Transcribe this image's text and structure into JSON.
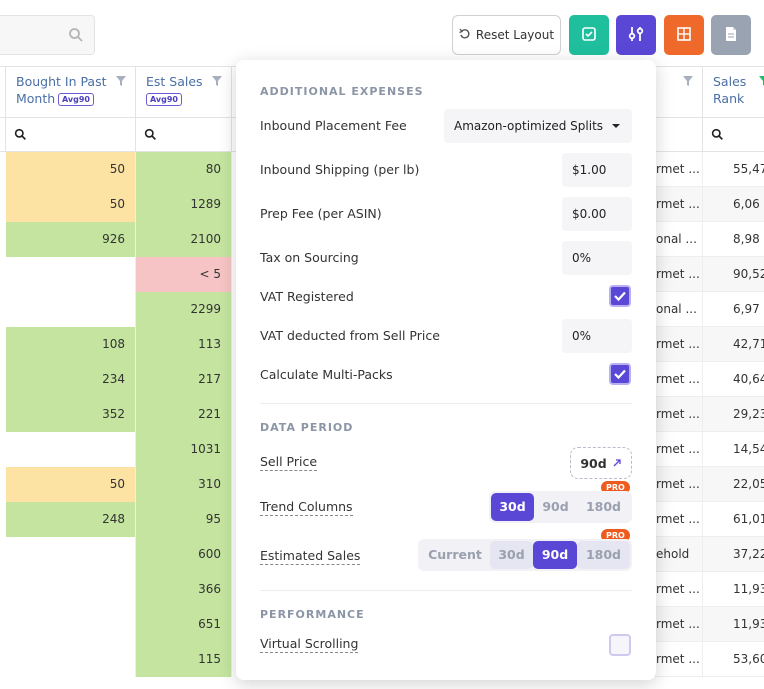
{
  "toolbar": {
    "reset_label": "Reset Layout"
  },
  "colors": {
    "accent": "#5b47d6",
    "teal": "#1fbf9d",
    "orange": "#ef6a2a",
    "gray": "#9aa3b2",
    "green_cell": "#c4e4a0",
    "orange_cell": "#fde3a3",
    "red_cell": "#f6c4c4"
  },
  "columns": {
    "bought": {
      "title": "Bought In Past Month",
      "badge": "Avg90"
    },
    "est_sales": {
      "title": "Est Sales",
      "badge": "Avg90"
    },
    "sales_rank": {
      "title": "Sales Rank"
    }
  },
  "rows": [
    {
      "bought": "50",
      "est": "80",
      "cat": "rmet ...",
      "rank": "55,47"
    },
    {
      "bought": "50",
      "est": "1289",
      "cat": "rmet ...",
      "rank": "6,06"
    },
    {
      "bought": "926",
      "est": "2100",
      "cat": "onal ...",
      "rank": "8,98"
    },
    {
      "bought": "",
      "est": "< 5",
      "cat": "rmet ...",
      "rank": "90,52"
    },
    {
      "bought": "",
      "est": "2299",
      "cat": "onal ...",
      "rank": "6,97"
    },
    {
      "bought": "108",
      "est": "113",
      "cat": "rmet ...",
      "rank": "42,71"
    },
    {
      "bought": "234",
      "est": "217",
      "cat": "rmet ...",
      "rank": "40,64"
    },
    {
      "bought": "352",
      "est": "221",
      "cat": "rmet ...",
      "rank": "29,23"
    },
    {
      "bought": "",
      "est": "1031",
      "cat": "rmet ...",
      "rank": "14,54"
    },
    {
      "bought": "50",
      "est": "310",
      "cat": "rmet ...",
      "rank": "22,05"
    },
    {
      "bought": "248",
      "est": "95",
      "cat": "rmet ...",
      "rank": "61,01"
    },
    {
      "bought": "",
      "est": "600",
      "cat": "ehold",
      "rank": "37,22"
    },
    {
      "bought": "",
      "est": "366",
      "cat": "rmet ...",
      "rank": "11,93"
    },
    {
      "bought": "",
      "est": "651",
      "cat": "rmet ...",
      "rank": "11,93"
    },
    {
      "bought": "",
      "est": "115",
      "cat": "rmet ...",
      "rank": "53,60"
    }
  ],
  "panel": {
    "additional_expenses": {
      "title": "ADDITIONAL EXPENSES",
      "inbound_placement_label": "Inbound Placement Fee",
      "inbound_placement_value": "Amazon-optimized Splits",
      "inbound_shipping_label": "Inbound Shipping (per lb)",
      "inbound_shipping_value": "$1.00",
      "prep_fee_label": "Prep Fee (per ASIN)",
      "prep_fee_value": "$0.00",
      "tax_label": "Tax on Sourcing",
      "tax_value": "0%",
      "vat_registered_label": "VAT Registered",
      "vat_registered_checked": true,
      "vat_deducted_label": "VAT deducted from Sell Price",
      "vat_deducted_value": "0%",
      "multipacks_label": "Calculate Multi-Packs",
      "multipacks_checked": true
    },
    "data_period": {
      "title": "DATA PERIOD",
      "sell_price_label": "Sell Price",
      "sell_price_value": "90d",
      "trend_label": "Trend Columns",
      "trend_options": [
        "30d",
        "90d",
        "180d"
      ],
      "trend_selected": "30d",
      "est_sales_label": "Estimated Sales",
      "est_sales_options": [
        "Current",
        "30d",
        "90d",
        "180d"
      ],
      "est_sales_selected": "90d",
      "pro_badge": "PRO"
    },
    "performance": {
      "title": "PERFORMANCE",
      "virtual_scrolling_label": "Virtual Scrolling",
      "virtual_scrolling_checked": false
    }
  }
}
